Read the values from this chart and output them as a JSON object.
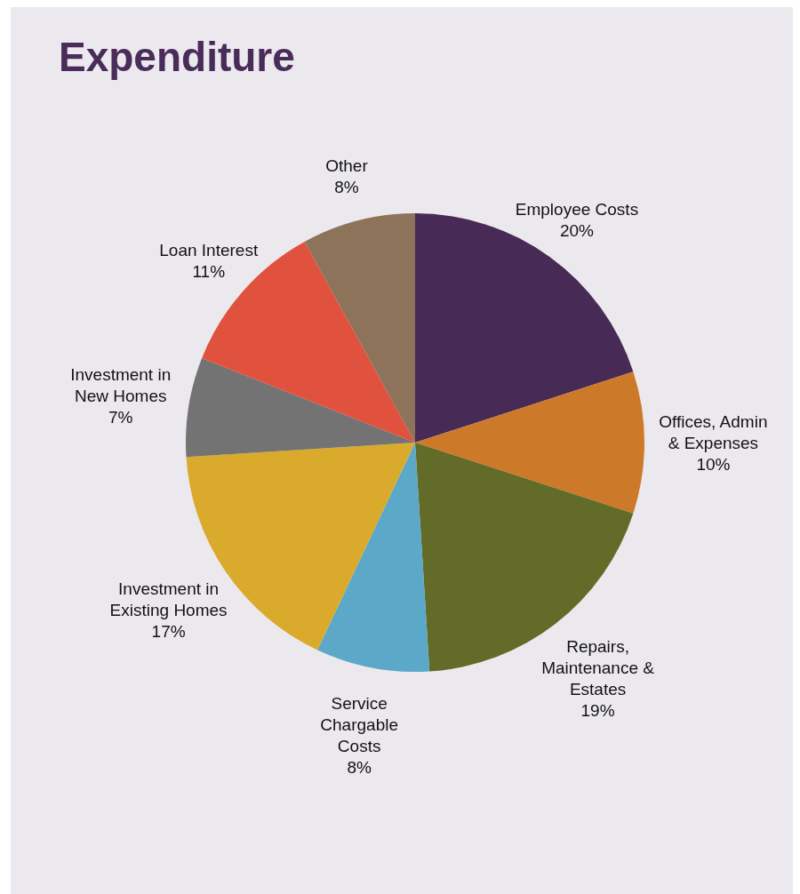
{
  "chart_data": {
    "type": "pie",
    "title": "Expenditure",
    "categories": [
      "Employee Costs",
      "Offices, Admin & Expenses",
      "Repairs, Maintenance & Estates",
      "Service Chargable Costs",
      "Investment in Existing Homes",
      "Investment in New Homes",
      "Loan Interest",
      "Other"
    ],
    "values": [
      20,
      10,
      19,
      8,
      17,
      7,
      11,
      8
    ],
    "value_labels": [
      "20%",
      "10%",
      "19%",
      "8%",
      "17%",
      "7%",
      "11%",
      "8%"
    ],
    "colors": [
      "#472a55",
      "#cc7a2a",
      "#626b27",
      "#5ba8c8",
      "#d9aa2b",
      "#737373",
      "#e0513e",
      "#8c735a"
    ]
  }
}
